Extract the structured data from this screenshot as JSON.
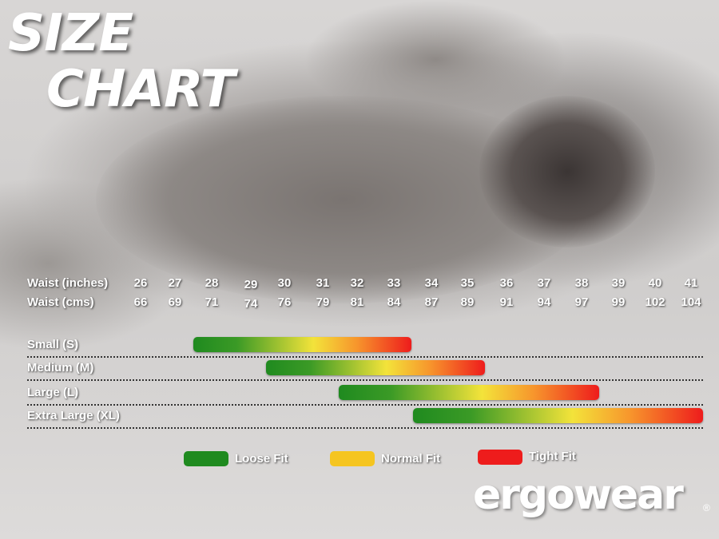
{
  "title_line1": "SIZE",
  "title_line2": "CHART",
  "chart_data": {
    "type": "bar",
    "title": "SIZE CHART",
    "row_labels": [
      "Waist (inches)",
      "Waist (cms)"
    ],
    "waist_inches": [
      26,
      27,
      28,
      29,
      30,
      31,
      32,
      33,
      34,
      35,
      36,
      37,
      38,
      39,
      40,
      41
    ],
    "waist_cms": [
      66,
      69,
      71,
      74,
      76,
      79,
      81,
      84,
      87,
      89,
      91,
      94,
      97,
      99,
      102,
      104
    ],
    "series": [
      {
        "name": "Small (S)",
        "range_inches": [
          28,
          33
        ]
      },
      {
        "name": "Medium (M)",
        "range_inches": [
          30,
          35
        ]
      },
      {
        "name": "Large (L)",
        "range_inches": [
          32,
          38
        ]
      },
      {
        "name": "Extra Large (XL)",
        "range_inches": [
          34,
          41
        ]
      }
    ],
    "gradient_colors": [
      "#1f8a1f",
      "#f3e33a",
      "#ee1c1c"
    ],
    "legend": [
      {
        "label": "Loose Fit",
        "color": "#1f8a1f"
      },
      {
        "label": "Normal Fit",
        "color": "#f5c520"
      },
      {
        "label": "Tight Fit",
        "color": "#ee1c1c"
      }
    ],
    "legend_placement": "bottom"
  },
  "logo": {
    "text": "ergowear",
    "mark": "®"
  }
}
